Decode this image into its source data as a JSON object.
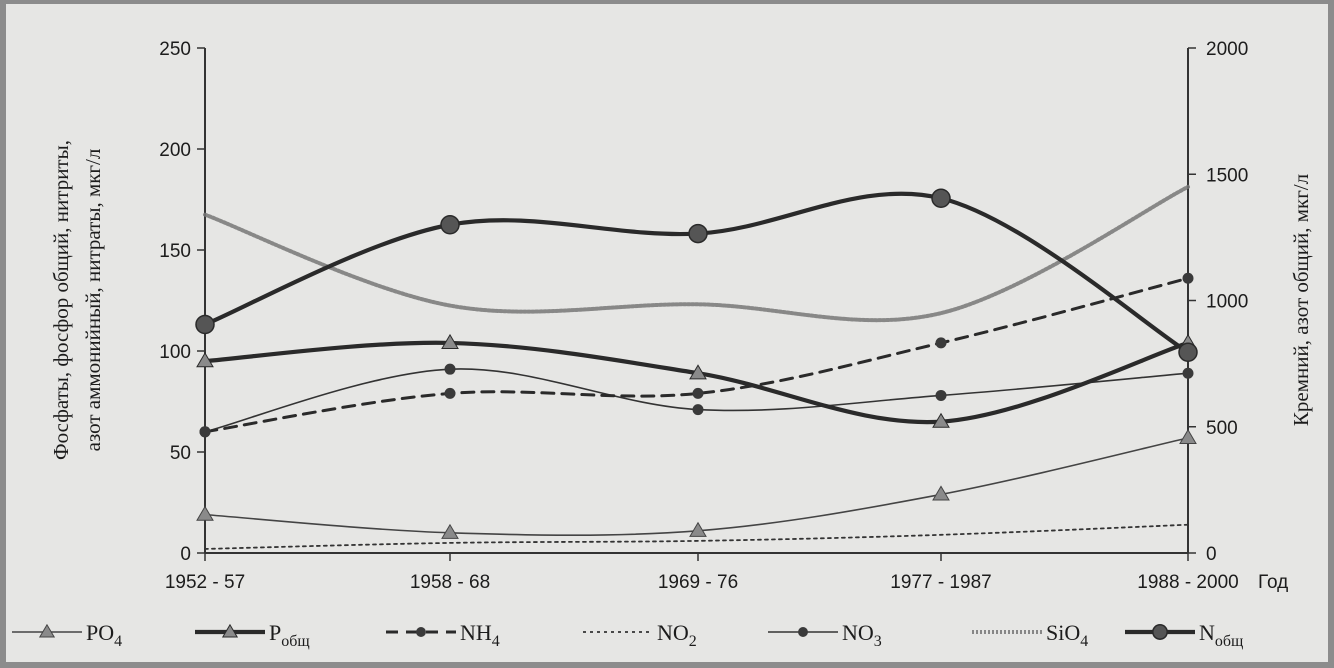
{
  "chart_data": {
    "type": "line",
    "categories": [
      "1952 - 57",
      "1958 - 68",
      "1969 - 76",
      "1977 - 1987",
      "1988 - 2000"
    ],
    "x_unit_label": "Год",
    "ylabel_left_line1": "Фосфаты, фосфор общий, нитриты,",
    "ylabel_left_line2": "азот аммонийный, нитраты, мкг/л",
    "ylabel_right": "Кремний, азот общий, мкг/л",
    "ylim_left": [
      0,
      250
    ],
    "yticks_left": [
      0,
      50,
      100,
      150,
      200,
      250
    ],
    "ylim_right": [
      0,
      2000
    ],
    "yticks_right": [
      0,
      500,
      1000,
      1500,
      2000
    ],
    "grid": false,
    "legend_position": "bottom",
    "series": [
      {
        "name": "PO",
        "sub": "4",
        "axis": "left",
        "marker": "triangle",
        "style": "thin",
        "color": "#444444",
        "values": [
          19,
          10,
          11,
          29,
          57
        ]
      },
      {
        "name": "P",
        "sub": "общ",
        "axis": "left",
        "marker": "triangle",
        "style": "thick",
        "color": "#2a2a2a",
        "values": [
          95,
          104,
          89,
          65,
          104
        ]
      },
      {
        "name": "NH",
        "sub": "4",
        "axis": "left",
        "marker": "circle",
        "style": "dashed",
        "color": "#2a2a2a",
        "values": [
          60,
          79,
          79,
          104,
          136
        ]
      },
      {
        "name": "NO",
        "sub": "2",
        "axis": "left",
        "marker": "none",
        "style": "dotted",
        "color": "#333333",
        "values": [
          2,
          5,
          6,
          9,
          14
        ]
      },
      {
        "name": "NO",
        "sub": "3",
        "axis": "left",
        "marker": "circle",
        "style": "thin",
        "color": "#333333",
        "values": [
          60,
          91,
          71,
          78,
          89
        ]
      },
      {
        "name": "SiO",
        "sub": "4",
        "axis": "right",
        "marker": "none",
        "style": "hatched",
        "color": "#777777",
        "values": [
          1340,
          980,
          985,
          950,
          1450
        ]
      },
      {
        "name": "N",
        "sub": "общ",
        "axis": "right",
        "marker": "bigcircle",
        "style": "thick",
        "color": "#2a2a2a",
        "values": [
          905,
          1300,
          1265,
          1405,
          795
        ]
      }
    ]
  }
}
